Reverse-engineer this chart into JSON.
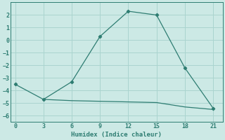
{
  "xlabel": "Humidex (Indice chaleur)",
  "ylabel": "",
  "background_color": "#cce9e5",
  "grid_color": "#aad4cf",
  "line_color": "#2e7d72",
  "line1_x": [
    0,
    3,
    6,
    9,
    12,
    15,
    18,
    21
  ],
  "line1_y": [
    -3.5,
    -4.7,
    -3.3,
    0.3,
    2.3,
    2.0,
    -2.2,
    -5.4
  ],
  "line2_x": [
    3,
    6,
    9,
    12,
    15,
    18,
    21
  ],
  "line2_y": [
    -4.7,
    -4.8,
    -4.85,
    -4.9,
    -4.95,
    -5.3,
    -5.5
  ],
  "xlim": [
    -0.5,
    22
  ],
  "ylim": [
    -6.5,
    3.0
  ],
  "xticks": [
    0,
    3,
    6,
    9,
    12,
    15,
    18,
    21
  ],
  "yticks": [
    -6,
    -5,
    -4,
    -3,
    -2,
    -1,
    0,
    1,
    2
  ],
  "tick_fontsize": 6.0,
  "xlabel_fontsize": 6.5
}
